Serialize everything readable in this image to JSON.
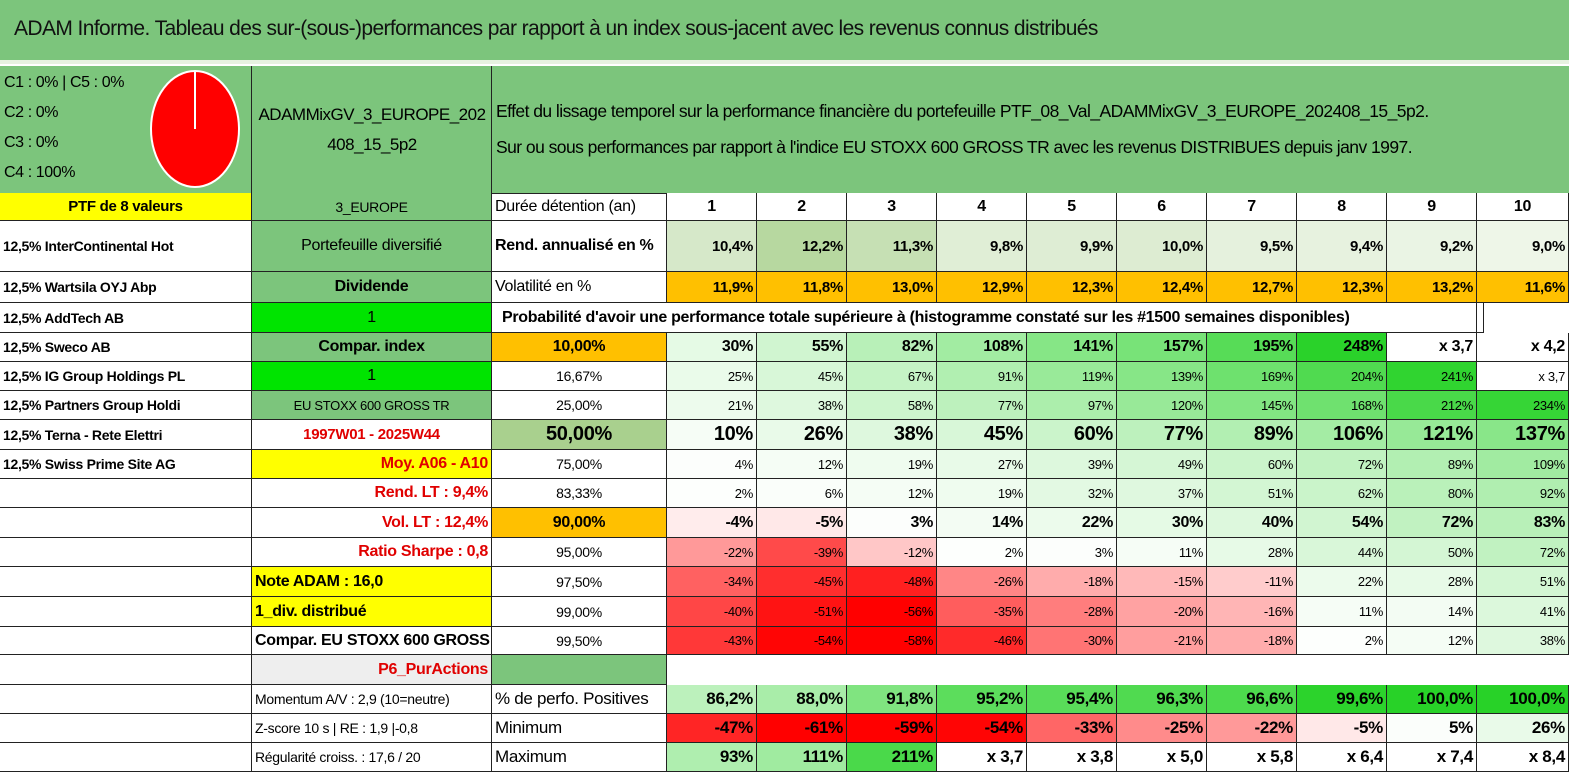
{
  "title": "ADAM Informe. Tableau des sur-(sous-)performances par rapport à un index sous-jacent avec les revenus connus distribués",
  "header": {
    "legend": [
      "C1 : 0% | C5 : 0%",
      "C2 : 0%",
      "C3 : 0%",
      "C4 : 100%"
    ],
    "portfolio": "ADAMMixGV_3_EUROPE_202408_15_5p2",
    "description": [
      "Effet du lissage temporel sur la performance financière du portefeuille PTF_08_Val_ADAMMixGV_3_EUROPE_202408_15_5p2.",
      "Sur ou sous performances par rapport à l'indice EU STOXX 600 GROSS TR avec les revenus DISTRIBUES depuis janv 1997."
    ]
  },
  "table": {
    "rows": [
      {
        "holding": "PTF de 8 valeurs",
        "info": "3_EUROPE",
        "metric": "Durée détention (an)",
        "values": [
          "1",
          "2",
          "3",
          "4",
          "5",
          "6",
          "7",
          "8",
          "9",
          "10"
        ]
      },
      {
        "holding": "12,5% InterContinental Hot",
        "info": "Portefeuille diversifié",
        "metric": "Rend. annualisé en %",
        "values": [
          "10,4%",
          "12,2%",
          "11,3%",
          "9,8%",
          "9,9%",
          "10,0%",
          "9,5%",
          "9,4%",
          "9,2%",
          "9,0%"
        ]
      },
      {
        "holding": "12,5% Wartsila OYJ Abp",
        "info": "Dividende",
        "metric": "Volatilité en %",
        "values": [
          "11,9%",
          "11,8%",
          "13,0%",
          "12,9%",
          "12,3%",
          "12,4%",
          "12,7%",
          "12,3%",
          "13,2%",
          "11,6%"
        ]
      },
      {
        "holding": "12,5% AddTech AB",
        "info": "1",
        "note": "Probabilité d'avoir une performance totale supérieure à (histogramme constaté sur les #1500 semaines disponibles)"
      },
      {
        "holding": "12,5% Sweco AB",
        "info": "Compar. index",
        "metric": "10,00%",
        "values": [
          "30%",
          "55%",
          "82%",
          "108%",
          "141%",
          "157%",
          "195%",
          "248%",
          "x 3,7",
          "x 4,2"
        ]
      },
      {
        "holding": "12,5% IG Group Holdings PL",
        "info": "1",
        "metric": "16,67%",
        "values": [
          "25%",
          "45%",
          "67%",
          "91%",
          "119%",
          "139%",
          "169%",
          "204%",
          "241%",
          "x 3,7"
        ]
      },
      {
        "holding": "12,5% Partners Group Holdi",
        "info": "EU STOXX 600 GROSS TR",
        "metric": "25,00%",
        "values": [
          "21%",
          "38%",
          "58%",
          "77%",
          "97%",
          "120%",
          "145%",
          "168%",
          "212%",
          "234%"
        ]
      },
      {
        "holding": "12,5% Terna - Rete Elettri",
        "info": "1997W01 - 2025W44",
        "metric": "50,00%",
        "values": [
          "10%",
          "26%",
          "38%",
          "45%",
          "60%",
          "77%",
          "89%",
          "106%",
          "121%",
          "137%"
        ]
      },
      {
        "holding": "12,5% Swiss Prime Site AG",
        "info": "Moy. A06 - A10",
        "metric": "75,00%",
        "values": [
          "4%",
          "12%",
          "19%",
          "27%",
          "39%",
          "49%",
          "60%",
          "72%",
          "89%",
          "109%"
        ]
      },
      {
        "holding": null,
        "info": "Rend. LT : 9,4%",
        "metric": "83,33%",
        "values": [
          "2%",
          "6%",
          "12%",
          "19%",
          "32%",
          "37%",
          "51%",
          "62%",
          "80%",
          "92%"
        ]
      },
      {
        "holding": null,
        "info": "Vol. LT : 12,4%",
        "metric": "90,00%",
        "values": [
          "-4%",
          "-5%",
          "3%",
          "14%",
          "22%",
          "30%",
          "40%",
          "54%",
          "72%",
          "83%"
        ]
      },
      {
        "holding": null,
        "info": "Ratio Sharpe : 0,8",
        "metric": "95,00%",
        "values": [
          "-22%",
          "-39%",
          "-12%",
          "2%",
          "3%",
          "11%",
          "28%",
          "44%",
          "50%",
          "72%"
        ]
      },
      {
        "holding": null,
        "info": "Note ADAM : 16,0",
        "metric": "97,50%",
        "values": [
          "-34%",
          "-45%",
          "-48%",
          "-26%",
          "-18%",
          "-15%",
          "-11%",
          "22%",
          "28%",
          "51%"
        ]
      },
      {
        "holding": null,
        "info": "1_div. distribué",
        "metric": "99,00%",
        "values": [
          "-40%",
          "-51%",
          "-56%",
          "-35%",
          "-28%",
          "-20%",
          "-16%",
          "11%",
          "14%",
          "41%"
        ]
      },
      {
        "holding": null,
        "info": "Compar. EU STOXX 600 GROSS TR",
        "metric": "99,50%",
        "values": [
          "-43%",
          "-54%",
          "-58%",
          "-46%",
          "-30%",
          "-21%",
          "-18%",
          "2%",
          "12%",
          "38%"
        ]
      },
      {
        "holding": null,
        "info": "P6_PurActions",
        "metric": null,
        "values": null
      },
      {
        "holding": null,
        "info": "Momentum A/V : 2,9 (10=neutre)",
        "metric": "% de perfo. Positives",
        "values": [
          "86,2%",
          "88,0%",
          "91,8%",
          "95,2%",
          "95,4%",
          "96,3%",
          "96,6%",
          "99,6%",
          "100,0%",
          "100,0%"
        ]
      },
      {
        "holding": null,
        "info": "Z-score 10 s | RE : 1,9 |-0,8",
        "metric": "Minimum",
        "values": [
          "-47%",
          "-61%",
          "-59%",
          "-54%",
          "-33%",
          "-25%",
          "-22%",
          "-5%",
          "5%",
          "26%"
        ]
      },
      {
        "holding": null,
        "info": "Régularité croiss. : 17,6 / 20",
        "metric": "Maximum",
        "values": [
          "93%",
          "111%",
          "211%",
          "x 3,7",
          "x 3,8",
          "x 5,0",
          "x 5,8",
          "x 6,4",
          "x 7,4",
          "x 8,4"
        ]
      }
    ]
  }
}
